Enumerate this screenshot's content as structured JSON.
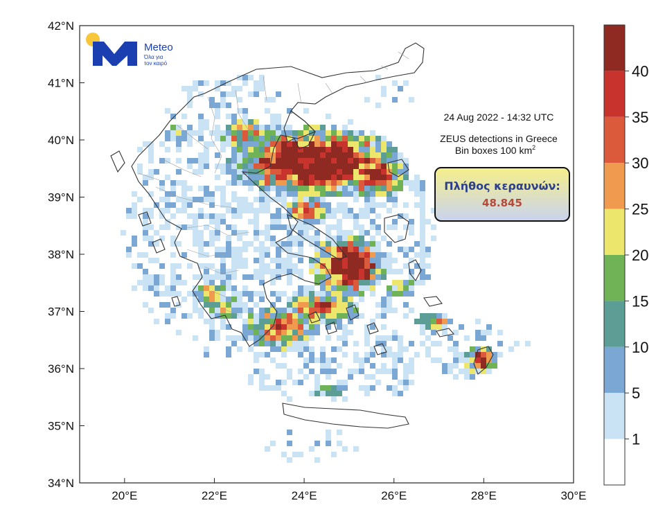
{
  "logo": {
    "brand": "Meteo",
    "tagline_line1": "Όλα για",
    "tagline_line2": "τον καιρό",
    "colors": {
      "sun": "#f7c63b",
      "mark": "#1b3fb0"
    }
  },
  "info": {
    "datetime": "24  Aug 2022 - 14:32 UTC",
    "line1": "ZEUS detections in Greece",
    "line2": "Bin boxes 100 km",
    "line2_sup": "2"
  },
  "badge": {
    "title": "Πλήθος κεραυνών:",
    "count": "48.845",
    "colors": {
      "top": "#f6ef8a",
      "bottom": "#c9d3ef",
      "title": "#2c3f8c",
      "count": "#b5493a"
    }
  },
  "axes": {
    "lat_ticks": [
      "42°N",
      "41°N",
      "40°N",
      "39°N",
      "38°N",
      "37°N",
      "36°N",
      "35°N",
      "34°N"
    ],
    "lon_ticks": [
      "20°E",
      "22°E",
      "24°E",
      "26°E",
      "28°E",
      "30°E"
    ],
    "lon_range": [
      19.0,
      30.0
    ],
    "lat_range": [
      34.0,
      42.0
    ]
  },
  "legend": {
    "labels": [
      "40",
      "35",
      "30",
      "25",
      "20",
      "15",
      "10",
      "5",
      "1"
    ],
    "bins": [
      {
        "min": 45,
        "color": "#8e2a22"
      },
      {
        "min": 40,
        "color": "#c8332e"
      },
      {
        "min": 35,
        "color": "#dc5a3c"
      },
      {
        "min": 30,
        "color": "#ef9a4e"
      },
      {
        "min": 25,
        "color": "#ece66d"
      },
      {
        "min": 20,
        "color": "#6fb356"
      },
      {
        "min": 15,
        "color": "#5c9e96"
      },
      {
        "min": 10,
        "color": "#7ba7d4"
      },
      {
        "min": 5,
        "color": "#c9e3f4"
      },
      {
        "min": 0,
        "color": "#ffffff"
      }
    ]
  },
  "chart_data": {
    "type": "heatmap",
    "title": "ZEUS detections in Greece",
    "units": "detections per 100 km² bin",
    "value_classes": [
      "0-1",
      "1-5",
      "5-10",
      "10-15",
      "15-20",
      "20-25",
      "25-30",
      "30-35",
      "35-40",
      "40-45",
      ">45"
    ],
    "hotspot_regions": [
      {
        "lon": [
          23.3,
          25.8
        ],
        "lat": [
          39.2,
          40.3
        ],
        "level": ">45"
      },
      {
        "lon": [
          24.1,
          25.3
        ],
        "lat": [
          37.3,
          38.2
        ],
        "level": ">45"
      },
      {
        "lon": [
          27.8,
          28.2
        ],
        "lat": [
          36.1,
          36.4
        ],
        "level": "40-45"
      }
    ]
  }
}
